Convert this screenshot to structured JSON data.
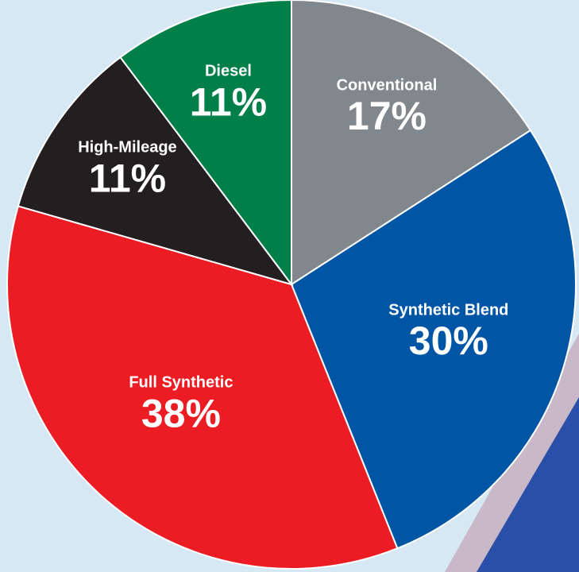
{
  "chart_data": {
    "type": "pie",
    "categories": [
      "Conventional",
      "Synthetic Blend",
      "Full Synthetic",
      "High-Mileage",
      "Diesel"
    ],
    "values": [
      17,
      30,
      38,
      11,
      11
    ],
    "value_labels": [
      "17%",
      "30%",
      "38%",
      "11%",
      "11%"
    ],
    "colors": [
      "#80878d",
      "#0055a5",
      "#ec1c24",
      "#231f20",
      "#007f49"
    ]
  }
}
